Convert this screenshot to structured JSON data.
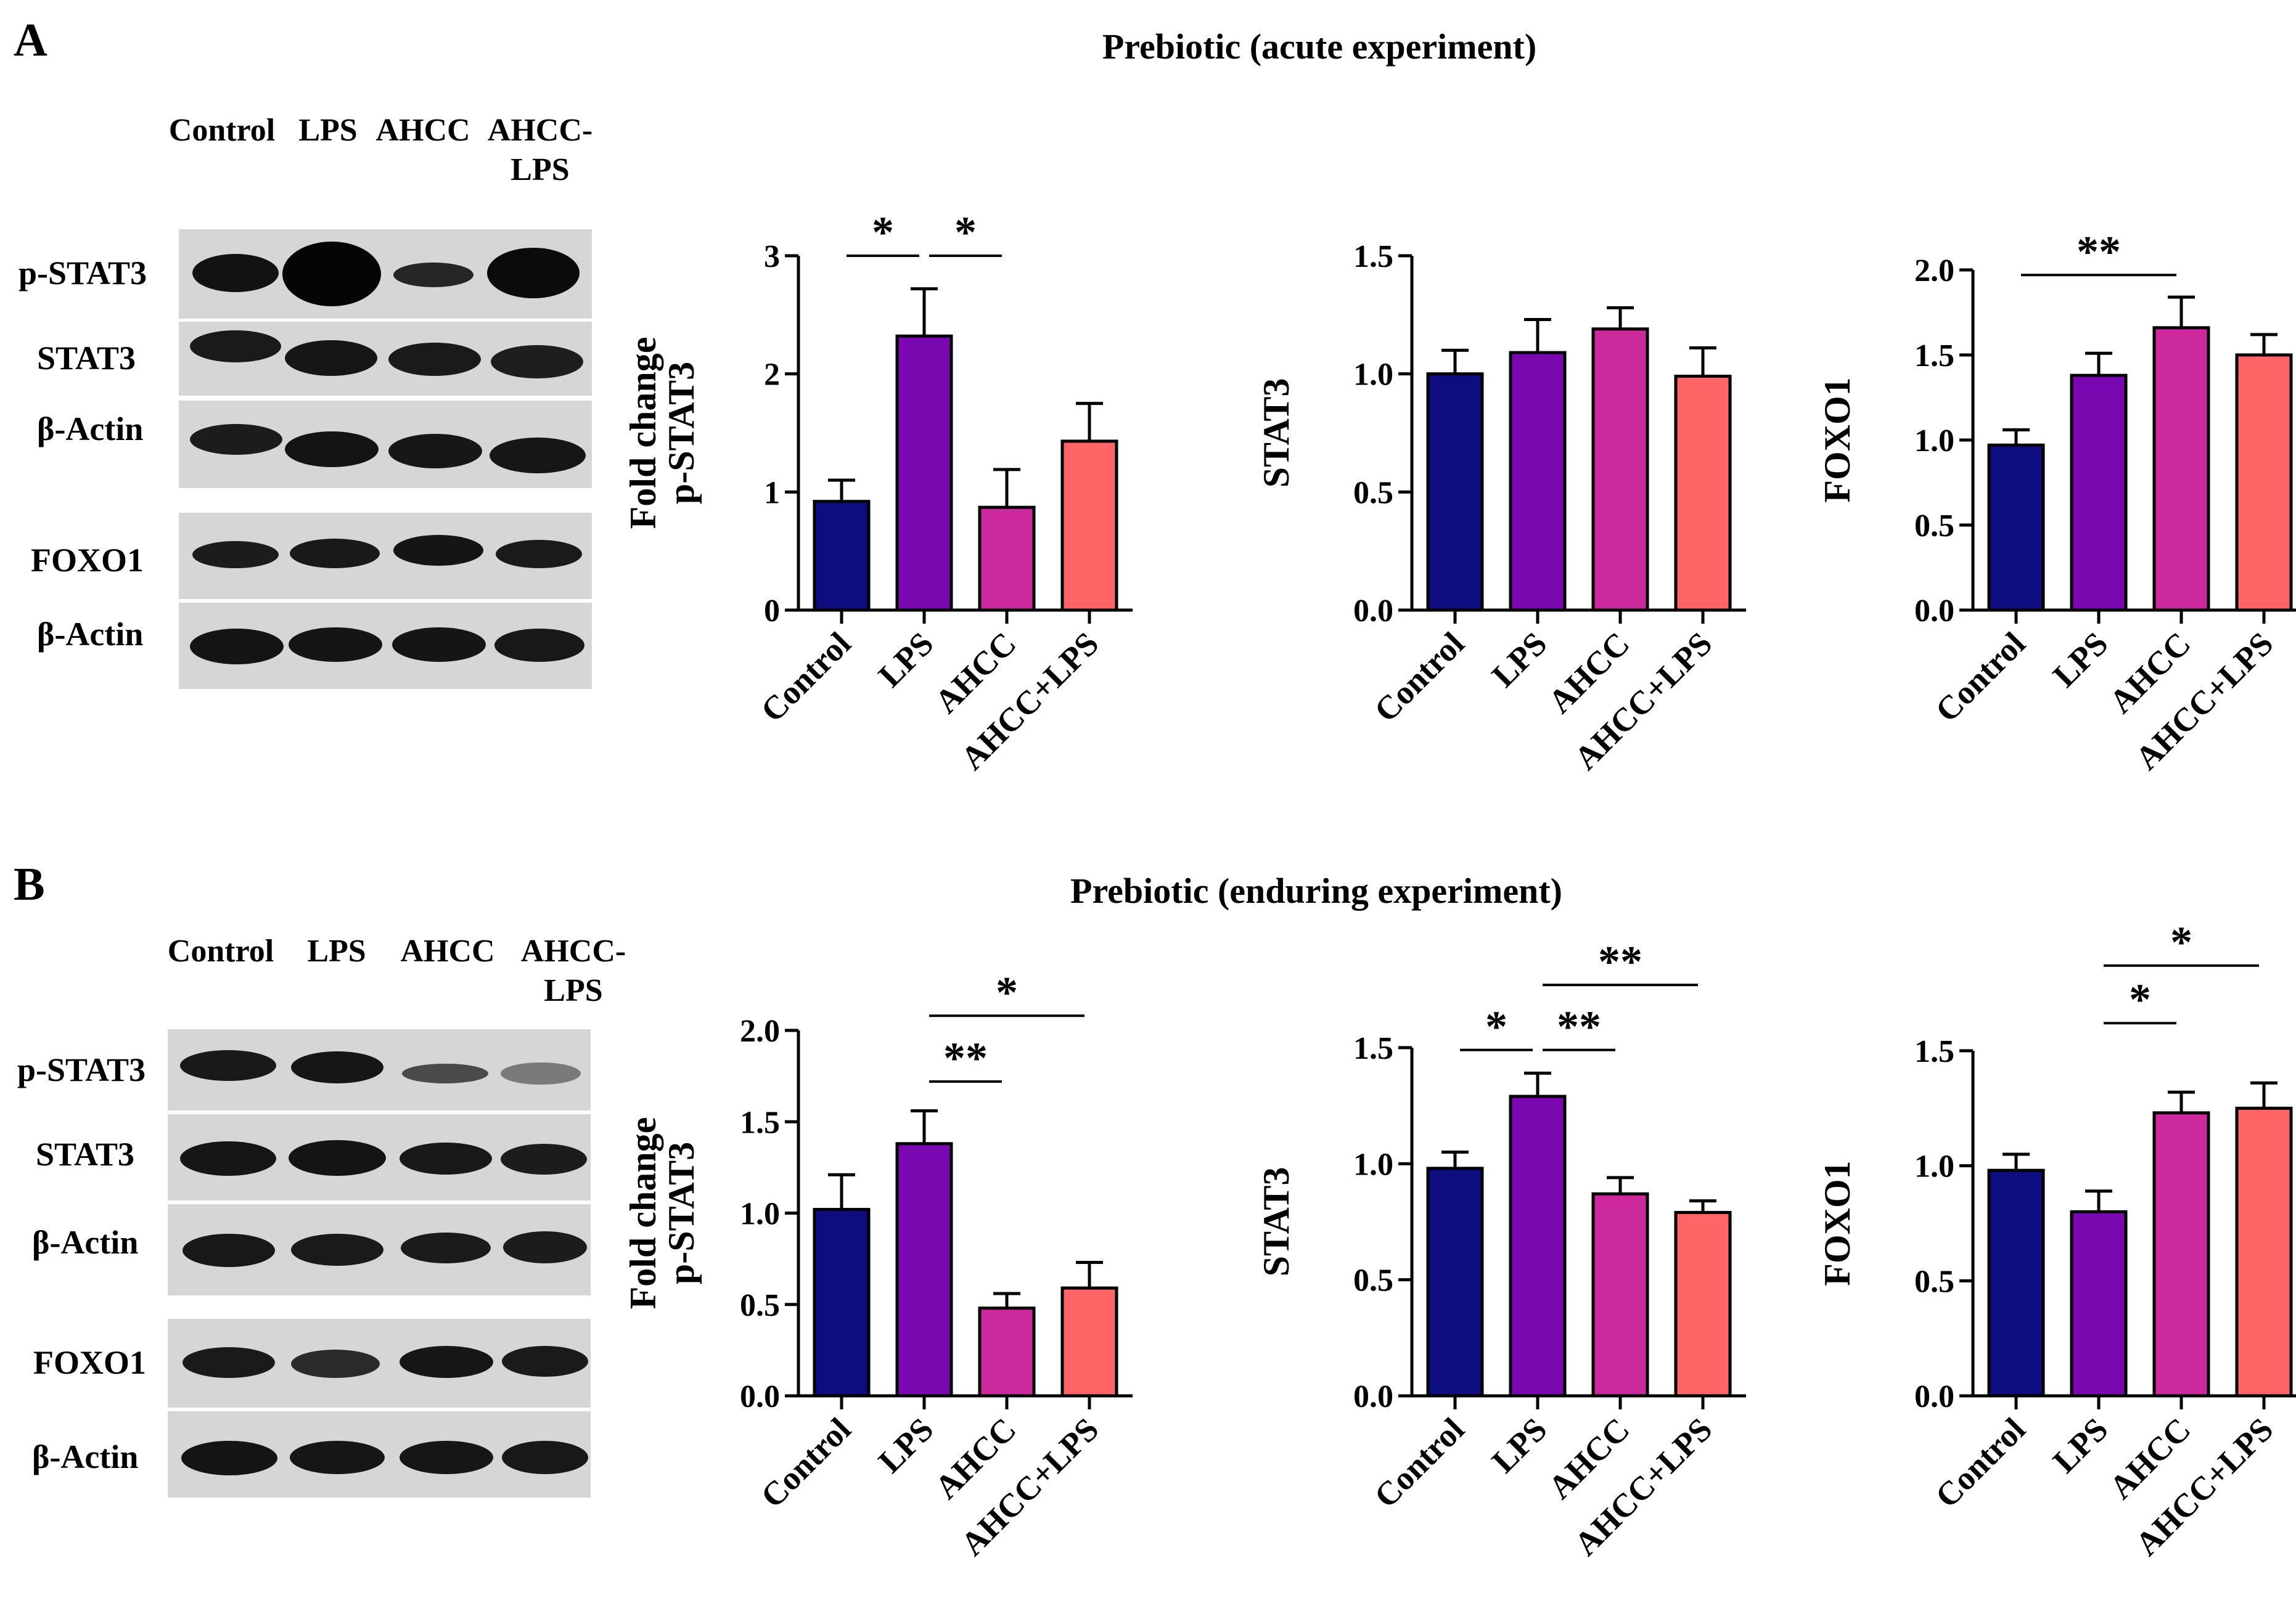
{
  "panels": [
    {
      "letter": "A",
      "title": "Prebiotic (acute experiment)",
      "lanes": [
        "Control",
        "LPS",
        "AHCC",
        "AHCC-\nLPS"
      ],
      "blot_rows": [
        "p-STAT3",
        "STAT3",
        "β-Actin",
        "FOXO1",
        "β-Actin"
      ]
    },
    {
      "letter": "B",
      "title": "Prebiotic (enduring experiment)",
      "lanes": [
        "Control",
        "LPS",
        "AHCC",
        "AHCC-\nLPS"
      ],
      "blot_rows": [
        "p-STAT3",
        "STAT3",
        "β-Actin",
        "FOXO1",
        "β-Actin"
      ]
    }
  ],
  "colors": {
    "Control": "#0d0d80",
    "LPS": "#7a08b0",
    "AHCC": "#cc2a9c",
    "AHCC+LPS": "#ff6466"
  },
  "chart_data": [
    {
      "type": "bar",
      "panel": "A",
      "categories": [
        "Control",
        "LPS",
        "AHCC",
        "AHCC+LPS"
      ],
      "values": [
        0.92,
        2.32,
        0.87,
        1.43
      ],
      "errors": [
        0.18,
        0.4,
        0.32,
        0.32
      ],
      "ylabel": [
        "Fold change",
        "p-STAT3"
      ],
      "ylim": [
        0,
        3
      ],
      "ticks": [
        "0",
        "1",
        "2",
        "3"
      ],
      "significance": [
        {
          "from": 0,
          "to": 1,
          "label": "*",
          "y": 3.0
        },
        {
          "from": 1,
          "to": 2,
          "label": "*",
          "y": 3.0
        }
      ]
    },
    {
      "type": "bar",
      "panel": "A",
      "categories": [
        "Control",
        "LPS",
        "AHCC",
        "AHCC+LPS"
      ],
      "values": [
        1.0,
        1.09,
        1.19,
        0.99
      ],
      "errors": [
        0.1,
        0.14,
        0.09,
        0.12
      ],
      "ylabel": [
        "STAT3"
      ],
      "ylim": [
        0,
        1.5
      ],
      "ticks": [
        "0.0",
        "0.5",
        "1.0",
        "1.5"
      ],
      "significance": []
    },
    {
      "type": "bar",
      "panel": "A",
      "categories": [
        "Control",
        "LPS",
        "AHCC",
        "AHCC+LPS"
      ],
      "values": [
        0.97,
        1.38,
        1.66,
        1.5
      ],
      "errors": [
        0.09,
        0.13,
        0.18,
        0.12
      ],
      "ylabel": [
        "FOXO1"
      ],
      "ylim": [
        0,
        2.0
      ],
      "ticks": [
        "0.0",
        "0.5",
        "1.0",
        "1.5",
        "2.0"
      ],
      "significance": [
        {
          "from": 0,
          "to": 2,
          "label": "**",
          "y": 1.97
        }
      ]
    },
    {
      "type": "bar",
      "panel": "B",
      "categories": [
        "Control",
        "LPS",
        "AHCC",
        "AHCC+LPS"
      ],
      "values": [
        1.02,
        1.38,
        0.48,
        0.59
      ],
      "errors": [
        0.19,
        0.18,
        0.08,
        0.14
      ],
      "ylabel": [
        "Fold change",
        "p-STAT3"
      ],
      "ylim": [
        0,
        2.0
      ],
      "ticks": [
        "0.0",
        "0.5",
        "1.0",
        "1.5",
        "2.0"
      ],
      "significance": [
        {
          "from": 1,
          "to": 2,
          "label": "**",
          "y": 1.72
        },
        {
          "from": 1,
          "to": 3,
          "label": "*",
          "y": 2.08
        }
      ]
    },
    {
      "type": "bar",
      "panel": "B",
      "categories": [
        "Control",
        "LPS",
        "AHCC",
        "AHCC+LPS"
      ],
      "values": [
        0.98,
        1.29,
        0.87,
        0.79
      ],
      "errors": [
        0.07,
        0.1,
        0.07,
        0.05
      ],
      "ylabel": [
        "STAT3"
      ],
      "ylim": [
        0,
        1.5
      ],
      "ticks": [
        "0.0",
        "0.5",
        "1.0",
        "1.5"
      ],
      "significance": [
        {
          "from": 0,
          "to": 1,
          "label": "*",
          "y": 1.49
        },
        {
          "from": 1,
          "to": 2,
          "label": "**",
          "y": 1.49
        },
        {
          "from": 1,
          "to": 3,
          "label": "**",
          "y": 1.77
        }
      ]
    },
    {
      "type": "bar",
      "panel": "B",
      "categories": [
        "Control",
        "LPS",
        "AHCC",
        "AHCC+LPS"
      ],
      "values": [
        0.98,
        0.8,
        1.23,
        1.25
      ],
      "errors": [
        0.07,
        0.09,
        0.09,
        0.11
      ],
      "ylabel": [
        "FOXO1"
      ],
      "ylim": [
        0,
        1.5
      ],
      "ticks": [
        "0.0",
        "0.5",
        "1.0",
        "1.5"
      ],
      "significance": [
        {
          "from": 1,
          "to": 2,
          "label": "*",
          "y": 1.62
        },
        {
          "from": 1,
          "to": 3,
          "label": "*",
          "y": 1.87
        }
      ]
    }
  ]
}
